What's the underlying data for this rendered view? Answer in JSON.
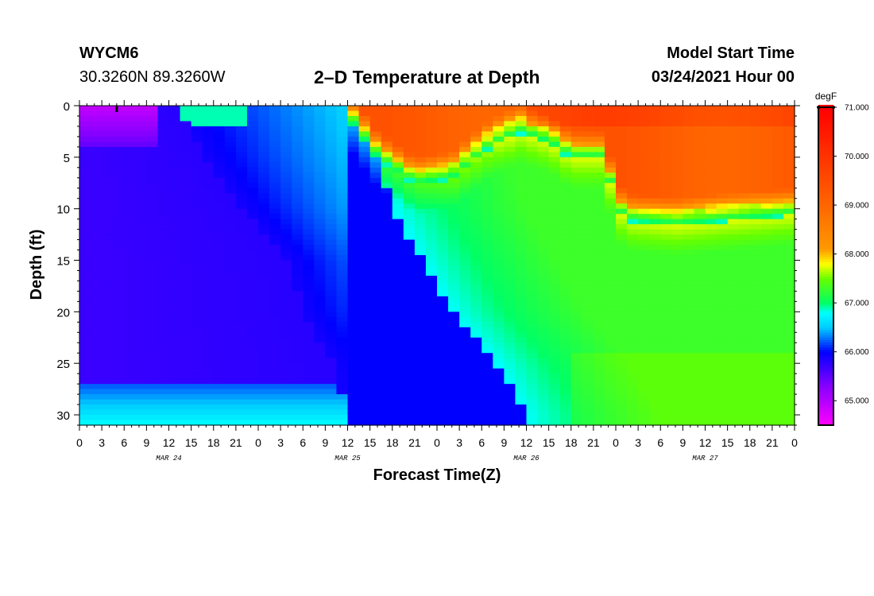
{
  "header": {
    "station": "WYCM6",
    "coords": "30.3260N 89.3260W",
    "title": "2–D Temperature at Depth",
    "model_start_label": "Model Start Time",
    "model_start_value": "03/24/2021 Hour 00"
  },
  "chart_data": {
    "type": "heatmap",
    "title": "2–D Temperature at Depth",
    "xlabel": "Forecast Time(Z)",
    "ylabel": "Depth (ft)",
    "x_range_hours": [
      0,
      96
    ],
    "x_tick_step_hours": 3,
    "x_tick_labels": [
      "0",
      "3",
      "6",
      "9",
      "12",
      "15",
      "18",
      "21",
      "0",
      "3",
      "6",
      "9",
      "12",
      "15",
      "18",
      "21",
      "0",
      "3",
      "6",
      "9",
      "12",
      "15",
      "18",
      "21",
      "0",
      "3",
      "6",
      "9",
      "12",
      "15",
      "18",
      "21",
      "0"
    ],
    "date_labels": [
      {
        "hour": 12,
        "label": "MAR 24"
      },
      {
        "hour": 36,
        "label": "MAR 25"
      },
      {
        "hour": 60,
        "label": "MAR 26"
      },
      {
        "hour": 84,
        "label": "MAR 27"
      }
    ],
    "y_range_ft": [
      0,
      31
    ],
    "y_ticks": [
      0,
      5,
      10,
      15,
      20,
      25,
      30
    ],
    "colorbar": {
      "unit": "degF",
      "min": 64.5,
      "max": 71.0,
      "ticks": [
        "71.000",
        "70.000",
        "69.000",
        "68.000",
        "67.000",
        "66.000",
        "65.000"
      ],
      "tick_values": [
        71,
        70,
        69,
        68,
        67,
        66,
        65
      ],
      "stops": [
        {
          "value": 64.5,
          "color": "#ff00ff"
        },
        {
          "value": 65.3,
          "color": "#8800ff"
        },
        {
          "value": 66.0,
          "color": "#0000ff"
        },
        {
          "value": 66.5,
          "color": "#00ccff"
        },
        {
          "value": 66.8,
          "color": "#00ffff"
        },
        {
          "value": 67.0,
          "color": "#00ff66"
        },
        {
          "value": 67.5,
          "color": "#66ff00"
        },
        {
          "value": 67.8,
          "color": "#ffff00"
        },
        {
          "value": 68.1,
          "color": "#ff9900"
        },
        {
          "value": 69.0,
          "color": "#ff6600"
        },
        {
          "value": 70.0,
          "color": "#ff3300"
        },
        {
          "value": 71.0,
          "color": "#ff0000"
        }
      ]
    },
    "thermocline_depth_ft": [
      {
        "hour": 0,
        "depth": null
      },
      {
        "hour": 36,
        "depth": 0
      },
      {
        "hour": 40,
        "depth": 4
      },
      {
        "hour": 45,
        "depth": 6.5
      },
      {
        "hour": 50,
        "depth": 6
      },
      {
        "hour": 55,
        "depth": 3
      },
      {
        "hour": 59,
        "depth": 1.5
      },
      {
        "hour": 63,
        "depth": 2.5
      },
      {
        "hour": 66,
        "depth": 4
      },
      {
        "hour": 70,
        "depth": 4
      },
      {
        "hour": 73,
        "depth": 10
      },
      {
        "hour": 80,
        "depth": 10.5
      },
      {
        "hour": 96,
        "depth": 9.5
      }
    ],
    "cold_core_edge_hours": [
      {
        "depth": 0,
        "hours": [
          13,
          38
        ]
      },
      {
        "depth": 5,
        "hours": [
          17,
          40
        ]
      },
      {
        "depth": 10,
        "hours": [
          22,
          42
        ]
      },
      {
        "depth": 15,
        "hours": [
          28,
          46
        ]
      },
      {
        "depth": 20,
        "hours": [
          30,
          50
        ]
      },
      {
        "depth": 25,
        "hours": [
          34,
          56
        ]
      },
      {
        "depth": 30,
        "hours": [
          36,
          60
        ]
      }
    ]
  }
}
